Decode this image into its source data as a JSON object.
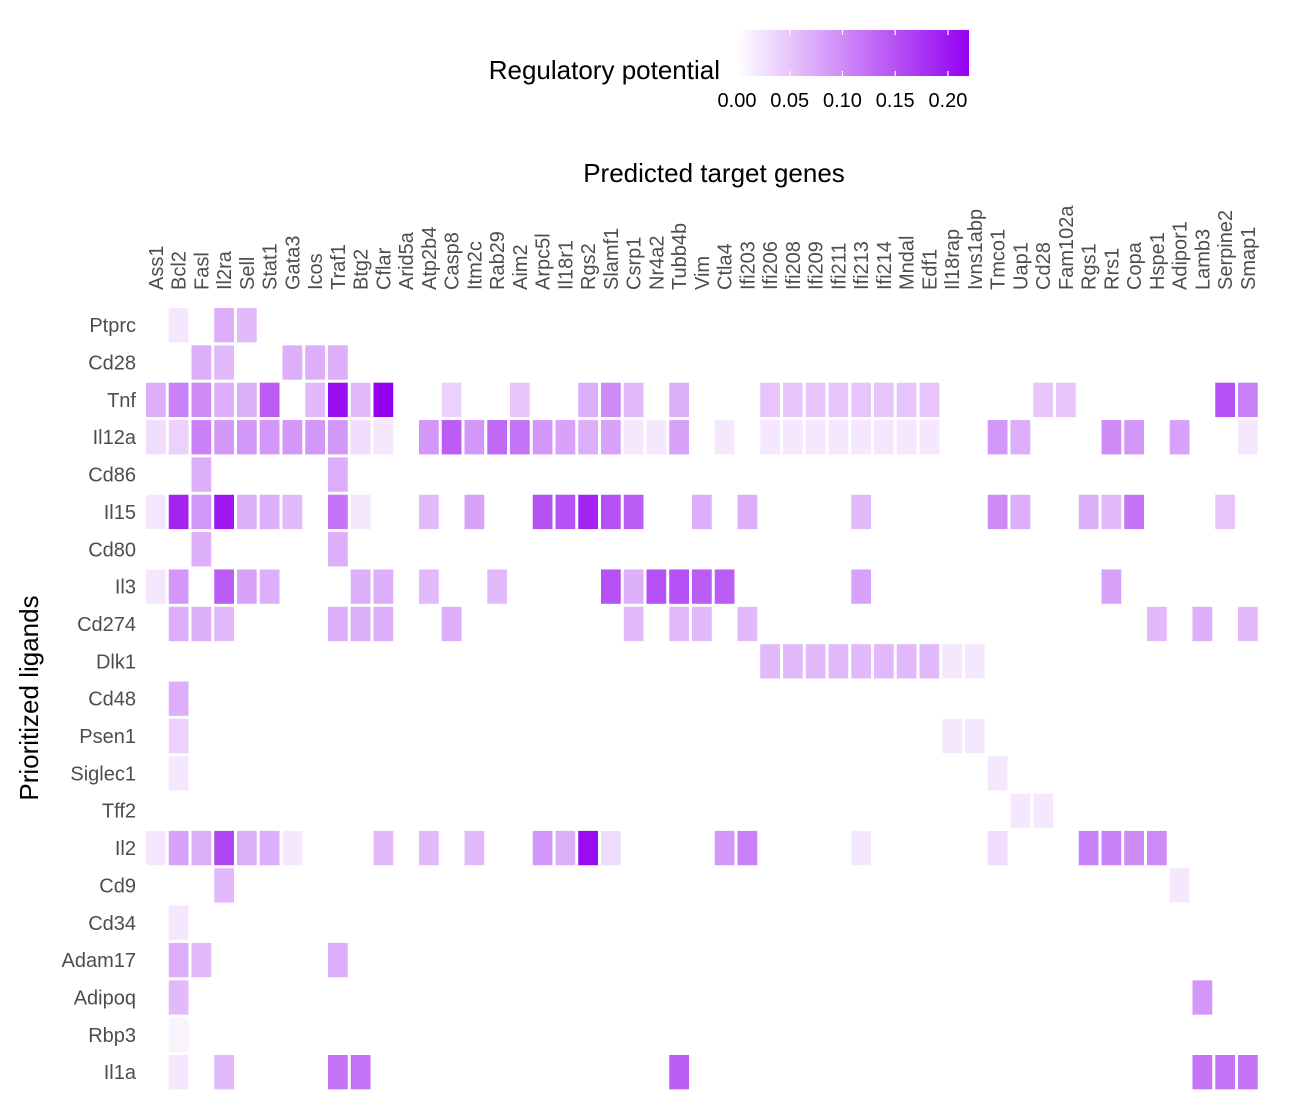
{
  "chart_data": {
    "type": "heatmap",
    "xlabel": "Predicted target genes",
    "ylabel": "Prioritized ligands",
    "legend": {
      "title": "Regulatory potential",
      "placement": "top",
      "ticks": [
        "0.00",
        "0.05",
        "0.10",
        "0.15",
        "0.20"
      ],
      "range": [
        0,
        0.22
      ],
      "low_color": "#ffffff",
      "high_color": "#9400f0"
    },
    "x": [
      "Ass1",
      "Bcl2",
      "Fasl",
      "Il2ra",
      "Sell",
      "Stat1",
      "Gata3",
      "Icos",
      "Traf1",
      "Btg2",
      "Cflar",
      "Arid5a",
      "Atp2b4",
      "Casp8",
      "Itm2c",
      "Rab29",
      "Aim2",
      "Arpc5l",
      "Il18r1",
      "Rgs2",
      "Slamf1",
      "Csrp1",
      "Nr4a2",
      "Tubb4b",
      "Vim",
      "Ctla4",
      "Ifi203",
      "Ifi206",
      "Ifi208",
      "Ifi209",
      "Ifi211",
      "Ifi213",
      "Ifi214",
      "Mndal",
      "Edf1",
      "Il18rap",
      "Ivns1abp",
      "Tmco1",
      "Uap1",
      "Cd28",
      "Fam102a",
      "Rgs1",
      "Rrs1",
      "Copa",
      "Hspe1",
      "Adipor1",
      "Lamb3",
      "Serpine2",
      "Smap1"
    ],
    "y": [
      "Ptprc",
      "Cd28",
      "Tnf",
      "Il12a",
      "Cd86",
      "Il15",
      "Cd80",
      "Il3",
      "Cd274",
      "Dlk1",
      "Cd48",
      "Psen1",
      "Siglec1",
      "Tff2",
      "Il2",
      "Cd9",
      "Cd34",
      "Adam17",
      "Adipoq",
      "Rbp3",
      "Il1a"
    ],
    "values": {
      "Ptprc": {
        "Bcl2": 0.02,
        "Il2ra": 0.07,
        "Sell": 0.06
      },
      "Cd28": {
        "Fasl": 0.07,
        "Il2ra": 0.06,
        "Gata3": 0.07,
        "Icos": 0.07,
        "Traf1": 0.07
      },
      "Tnf": {
        "Ass1": 0.07,
        "Bcl2": 0.11,
        "Fasl": 0.1,
        "Il2ra": 0.07,
        "Sell": 0.07,
        "Stat1": 0.14,
        "Icos": 0.06,
        "Traf1": 0.21,
        "Btg2": 0.06,
        "Cflar": 0.22,
        "Casp8": 0.04,
        "Aim2": 0.05,
        "Rgs2": 0.07,
        "Slamf1": 0.1,
        "Csrp1": 0.06,
        "Tubb4b": 0.07,
        "Ifi206": 0.05,
        "Ifi208": 0.05,
        "Ifi209": 0.05,
        "Ifi211": 0.05,
        "Ifi213": 0.05,
        "Ifi214": 0.05,
        "Mndal": 0.05,
        "Edf1": 0.05,
        "Cd28": 0.05,
        "Fam102a": 0.05,
        "Serpine2": 0.15,
        "Smap1": 0.11
      },
      "Il12a": {
        "Ass1": 0.03,
        "Bcl2": 0.04,
        "Fasl": 0.11,
        "Il2ra": 0.09,
        "Sell": 0.09,
        "Stat1": 0.09,
        "Gata3": 0.09,
        "Icos": 0.09,
        "Traf1": 0.09,
        "Btg2": 0.03,
        "Cflar": 0.02,
        "Atp2b4": 0.09,
        "Casp8": 0.14,
        "Itm2c": 0.09,
        "Rab29": 0.13,
        "Aim2": 0.12,
        "Arpc5l": 0.09,
        "Il18r1": 0.08,
        "Rgs2": 0.07,
        "Slamf1": 0.08,
        "Csrp1": 0.02,
        "Nr4a2": 0.02,
        "Tubb4b": 0.08,
        "Ctla4": 0.02,
        "Ifi206": 0.02,
        "Ifi208": 0.02,
        "Ifi209": 0.02,
        "Ifi211": 0.02,
        "Ifi213": 0.02,
        "Ifi214": 0.02,
        "Mndal": 0.02,
        "Edf1": 0.02,
        "Tmco1": 0.09,
        "Uap1": 0.07,
        "Rrs1": 0.1,
        "Copa": 0.09,
        "Adipor1": 0.08,
        "Smap1": 0.02
      },
      "Cd86": {
        "Fasl": 0.07,
        "Traf1": 0.07
      },
      "Il15": {
        "Ass1": 0.02,
        "Bcl2": 0.19,
        "Fasl": 0.09,
        "Il2ra": 0.2,
        "Sell": 0.07,
        "Stat1": 0.07,
        "Gata3": 0.06,
        "Traf1": 0.12,
        "Btg2": 0.02,
        "Atp2b4": 0.06,
        "Itm2c": 0.08,
        "Arpc5l": 0.15,
        "Il18r1": 0.15,
        "Rgs2": 0.19,
        "Slamf1": 0.15,
        "Csrp1": 0.14,
        "Vim": 0.07,
        "Ifi203": 0.07,
        "Ifi213": 0.06,
        "Tmco1": 0.1,
        "Uap1": 0.07,
        "Rgs1": 0.07,
        "Rrs1": 0.06,
        "Copa": 0.12,
        "Serpine2": 0.05
      },
      "Cd80": {
        "Fasl": 0.07,
        "Traf1": 0.07
      },
      "Il3": {
        "Ass1": 0.02,
        "Bcl2": 0.09,
        "Il2ra": 0.14,
        "Sell": 0.08,
        "Stat1": 0.07,
        "Btg2": 0.07,
        "Cflar": 0.07,
        "Atp2b4": 0.06,
        "Rab29": 0.06,
        "Slamf1": 0.15,
        "Csrp1": 0.07,
        "Nr4a2": 0.15,
        "Tubb4b": 0.15,
        "Vim": 0.14,
        "Ctla4": 0.14,
        "Ifi213": 0.08,
        "Rrs1": 0.08
      },
      "Cd274": {
        "Bcl2": 0.07,
        "Fasl": 0.07,
        "Il2ra": 0.06,
        "Traf1": 0.07,
        "Btg2": 0.07,
        "Cflar": 0.07,
        "Casp8": 0.07,
        "Csrp1": 0.06,
        "Tubb4b": 0.06,
        "Vim": 0.06,
        "Ifi203": 0.06,
        "Hspe1": 0.06,
        "Lamb3": 0.07,
        "Smap1": 0.06
      },
      "Dlk1": {
        "Ifi206": 0.06,
        "Ifi208": 0.06,
        "Ifi209": 0.06,
        "Ifi211": 0.06,
        "Ifi213": 0.06,
        "Ifi214": 0.06,
        "Mndal": 0.06,
        "Edf1": 0.06,
        "Il18rap": 0.02,
        "Ivns1abp": 0.02
      },
      "Cd48": {
        "Bcl2": 0.07
      },
      "Psen1": {
        "Bcl2": 0.04,
        "Il18rap": 0.02,
        "Ivns1abp": 0.02
      },
      "Siglec1": {
        "Bcl2": 0.02,
        "Tmco1": 0.02
      },
      "Tff2": {
        "Uap1": 0.02,
        "Cd28": 0.02
      },
      "Il2": {
        "Ass1": 0.02,
        "Bcl2": 0.08,
        "Fasl": 0.07,
        "Il2ra": 0.16,
        "Sell": 0.07,
        "Stat1": 0.07,
        "Gata3": 0.02,
        "Cflar": 0.06,
        "Atp2b4": 0.06,
        "Itm2c": 0.06,
        "Arpc5l": 0.09,
        "Il18r1": 0.07,
        "Rgs2": 0.21,
        "Slamf1": 0.03,
        "Ctla4": 0.09,
        "Ifi203": 0.11,
        "Ifi213": 0.02,
        "Tmco1": 0.03,
        "Rgs1": 0.11,
        "Rrs1": 0.11,
        "Copa": 0.1,
        "Hspe1": 0.1
      },
      "Cd9": {
        "Il2ra": 0.06,
        "Adipor1": 0.02
      },
      "Cd34": {
        "Bcl2": 0.02
      },
      "Adam17": {
        "Bcl2": 0.07,
        "Fasl": 0.06,
        "Traf1": 0.07
      },
      "Adipoq": {
        "Bcl2": 0.06,
        "Lamb3": 0.09
      },
      "Rbp3": {
        "Bcl2": 0.01
      },
      "Il1a": {
        "Bcl2": 0.02,
        "Il2ra": 0.06,
        "Traf1": 0.12,
        "Btg2": 0.12,
        "Tubb4b": 0.14,
        "Serpine2": 0.12,
        "Smap1": 0.12,
        "Lamb3": 0.12
      }
    }
  }
}
